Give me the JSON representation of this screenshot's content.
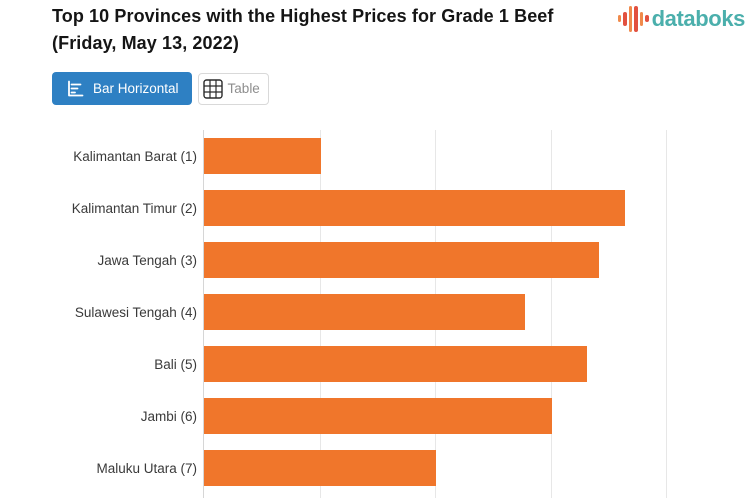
{
  "header": {
    "title_line1": "Top 10 Provinces with the Highest Prices for Grade 1 Beef",
    "title_line2": "(Friday, May 13, 2022)",
    "logo_text": "databoks"
  },
  "toolbar": {
    "bar_horizontal_label": "Bar Horizontal",
    "table_label": "Table"
  },
  "icons": {
    "bar_horizontal": "horizontal-bar-chart-glyph",
    "table": "3x3-grid-glyph",
    "logo": "databoks-pulse-bars-glyph"
  },
  "colors": {
    "accent_blue": "#2E80C3",
    "bar_orange": "#F0762B",
    "logo_teal": "#4BAFAC",
    "logo_orange": "#F08A4B",
    "logo_red": "#E25140",
    "gridline": "#E7E7E7",
    "axis_line": "#D6D6D6",
    "title_text": "#151515",
    "button_muted_text": "#8E8E8E",
    "category_label_text": "#3A3A3A"
  },
  "chart_data": {
    "type": "bar",
    "orientation": "horizontal",
    "title": "Top 10 Provinces with the Highest Prices for Grade 1 Beef (Friday, May 13, 2022)",
    "categories": [
      "Kalimantan Barat (1)",
      "Kalimantan Timur (2)",
      "Jawa Tengah (3)",
      "Sulawesi Tengah (4)",
      "Bali (5)",
      "Jambi (6)",
      "Maluku Utara (7)"
    ],
    "values_gridline_units": [
      1.01,
      3.64,
      3.42,
      2.78,
      3.32,
      3.01,
      2.01
    ],
    "bar_pct": [
      21.3,
      76.5,
      71.8,
      58.4,
      69.6,
      63.3,
      42.2
    ],
    "gridlines_pct": [
      21.2,
      42.2,
      63.2,
      84.2
    ],
    "xlabel": "",
    "ylabel": "",
    "x_tick_labels_visible": false,
    "legend": false,
    "grid": true
  }
}
